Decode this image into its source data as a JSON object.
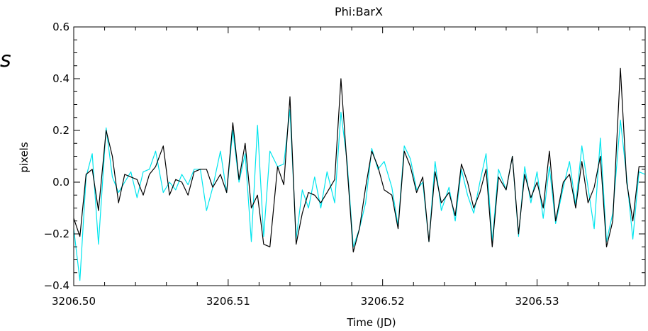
{
  "chart_data": {
    "type": "line",
    "title": "Phi:BarX",
    "xlabel": "Time (JD)",
    "ylabel": "pixels",
    "left_partial_text": "s",
    "xlim": [
      3206.5,
      3206.537
    ],
    "ylim": [
      -0.4,
      0.6
    ],
    "x_ticks": [
      3206.5,
      3206.51,
      3206.52,
      3206.53
    ],
    "x_tick_labels": [
      "3206.50",
      "3206.51",
      "3206.52",
      "3206.53"
    ],
    "y_ticks": [
      -0.4,
      -0.2,
      0.0,
      0.2,
      0.4,
      0.6
    ],
    "y_tick_labels": [
      "−0.4",
      "−0.2",
      "0.0",
      "0.2",
      "0.4",
      "0.6"
    ],
    "grid": false,
    "series": [
      {
        "color": "#000000",
        "x": [
          3206.5,
          3206.5004,
          3206.5008,
          3206.5012,
          3206.5016,
          3206.5021,
          3206.5025,
          3206.5029,
          3206.5033,
          3206.5037,
          3206.5041,
          3206.5045,
          3206.5049,
          3206.5053,
          3206.5058,
          3206.5062,
          3206.5066,
          3206.507,
          3206.5074,
          3206.5078,
          3206.5082,
          3206.5086,
          3206.509,
          3206.5095,
          3206.5099,
          3206.5103,
          3206.5107,
          3206.5111,
          3206.5115,
          3206.5119,
          3206.5123,
          3206.5127,
          3206.5132,
          3206.5136,
          3206.514,
          3206.5144,
          3206.5148,
          3206.5152,
          3206.5156,
          3206.516,
          3206.5164,
          3206.5169,
          3206.5173,
          3206.5177,
          3206.5181,
          3206.5185,
          3206.5189,
          3206.5193,
          3206.5197,
          3206.5201,
          3206.5206,
          3206.521,
          3206.5214,
          3206.5218,
          3206.5222,
          3206.5226,
          3206.523,
          3206.5234,
          3206.5238,
          3206.5243,
          3206.5247,
          3206.5251,
          3206.5255,
          3206.5259,
          3206.5263,
          3206.5267,
          3206.5271,
          3206.5275,
          3206.528,
          3206.5284,
          3206.5288,
          3206.5292,
          3206.5296,
          3206.53,
          3206.5304,
          3206.5308,
          3206.5312,
          3206.5317,
          3206.5321,
          3206.5325,
          3206.5329,
          3206.5333,
          3206.5337,
          3206.5341,
          3206.5345,
          3206.5349,
          3206.5354,
          3206.5358,
          3206.5362,
          3206.5366,
          3206.537
        ],
        "y": [
          -0.14,
          -0.21,
          0.03,
          0.05,
          -0.11,
          0.2,
          0.1,
          -0.08,
          0.03,
          0.02,
          0.01,
          -0.05,
          0.03,
          0.06,
          0.14,
          -0.05,
          0.01,
          0.0,
          -0.05,
          0.04,
          0.05,
          0.05,
          -0.02,
          0.03,
          -0.04,
          0.23,
          0.01,
          0.15,
          -0.1,
          -0.05,
          -0.24,
          -0.25,
          0.06,
          -0.01,
          0.33,
          -0.24,
          -0.12,
          -0.04,
          -0.05,
          -0.08,
          -0.04,
          0.01,
          0.4,
          0.06,
          -0.27,
          -0.18,
          -0.02,
          0.12,
          0.06,
          -0.03,
          -0.05,
          -0.18,
          0.12,
          0.06,
          -0.04,
          0.02,
          -0.23,
          0.04,
          -0.08,
          -0.04,
          -0.13,
          0.07,
          0.0,
          -0.1,
          -0.04,
          0.05,
          -0.25,
          0.02,
          -0.03,
          0.1,
          -0.2,
          0.03,
          -0.06,
          0.0,
          -0.1,
          0.12,
          -0.15,
          0.0,
          0.03,
          -0.1,
          0.08,
          -0.08,
          -0.02,
          0.1,
          -0.25,
          -0.15,
          0.44,
          0.0,
          -0.15,
          0.06,
          0.06
        ]
      },
      {
        "color": "#00e5ee",
        "x": [
          3206.5,
          3206.5004,
          3206.5008,
          3206.5012,
          3206.5016,
          3206.5021,
          3206.5025,
          3206.5029,
          3206.5033,
          3206.5037,
          3206.5041,
          3206.5045,
          3206.5049,
          3206.5053,
          3206.5058,
          3206.5062,
          3206.5066,
          3206.507,
          3206.5074,
          3206.5078,
          3206.5082,
          3206.5086,
          3206.509,
          3206.5095,
          3206.5099,
          3206.5103,
          3206.5107,
          3206.5111,
          3206.5115,
          3206.5119,
          3206.5123,
          3206.5127,
          3206.5132,
          3206.5136,
          3206.514,
          3206.5144,
          3206.5148,
          3206.5152,
          3206.5156,
          3206.516,
          3206.5164,
          3206.5169,
          3206.5173,
          3206.5177,
          3206.5181,
          3206.5185,
          3206.5189,
          3206.5193,
          3206.5197,
          3206.5201,
          3206.5206,
          3206.521,
          3206.5214,
          3206.5218,
          3206.5222,
          3206.5226,
          3206.523,
          3206.5234,
          3206.5238,
          3206.5243,
          3206.5247,
          3206.5251,
          3206.5255,
          3206.5259,
          3206.5263,
          3206.5267,
          3206.5271,
          3206.5275,
          3206.528,
          3206.5284,
          3206.5288,
          3206.5292,
          3206.5296,
          3206.53,
          3206.5304,
          3206.5308,
          3206.5312,
          3206.5317,
          3206.5321,
          3206.5325,
          3206.5329,
          3206.5333,
          3206.5337,
          3206.5341,
          3206.5345,
          3206.5349,
          3206.5354,
          3206.5358,
          3206.5362,
          3206.5366,
          3206.537
        ],
        "y": [
          -0.18,
          -0.38,
          0.02,
          0.11,
          -0.24,
          0.21,
          0.02,
          -0.04,
          0.0,
          0.04,
          -0.06,
          0.04,
          0.05,
          0.12,
          -0.04,
          0.0,
          -0.03,
          0.03,
          -0.01,
          0.05,
          0.05,
          -0.11,
          -0.02,
          0.12,
          -0.04,
          0.2,
          0.0,
          0.11,
          -0.23,
          0.22,
          -0.21,
          0.12,
          0.06,
          0.07,
          0.28,
          -0.22,
          -0.03,
          -0.1,
          0.02,
          -0.1,
          0.04,
          -0.08,
          0.27,
          0.08,
          -0.25,
          -0.18,
          -0.08,
          0.13,
          0.05,
          0.08,
          -0.02,
          -0.17,
          0.14,
          0.09,
          -0.03,
          0.0,
          -0.23,
          0.08,
          -0.11,
          -0.02,
          -0.15,
          0.05,
          -0.05,
          -0.12,
          0.0,
          0.11,
          -0.23,
          0.05,
          -0.03,
          0.1,
          -0.21,
          0.06,
          -0.08,
          0.04,
          -0.14,
          0.06,
          -0.16,
          -0.02,
          0.08,
          -0.09,
          0.14,
          -0.02,
          -0.18,
          0.17,
          -0.23,
          -0.12,
          0.24,
          0.02,
          -0.22,
          0.04,
          0.03
        ]
      }
    ]
  }
}
